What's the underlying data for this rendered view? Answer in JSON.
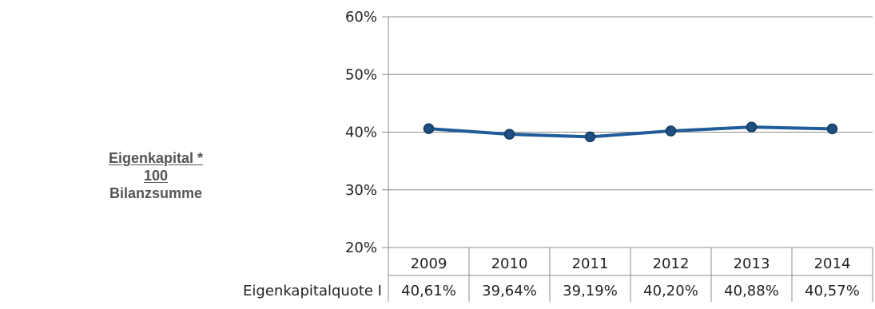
{
  "formula": {
    "numerator": "Eigenkapital * 100",
    "denominator": "Bilanzsumme"
  },
  "chart_data": {
    "type": "line",
    "categories": [
      "2009",
      "2010",
      "2011",
      "2012",
      "2013",
      "2014"
    ],
    "series": [
      {
        "name": "Eigenkapitalquote I",
        "values": [
          40.61,
          39.64,
          39.19,
          40.2,
          40.88,
          40.57
        ],
        "color": "#1f5c99"
      }
    ],
    "value_labels": [
      "40,61%",
      "39,64%",
      "39,19%",
      "40,20%",
      "40,88%",
      "40,57%"
    ],
    "yticks": [
      "20%",
      "30%",
      "40%",
      "50%",
      "60%"
    ],
    "ylim": [
      20,
      60
    ],
    "grid": true,
    "legend": "data-table-row",
    "gridline_color": "#8c8c8c"
  }
}
